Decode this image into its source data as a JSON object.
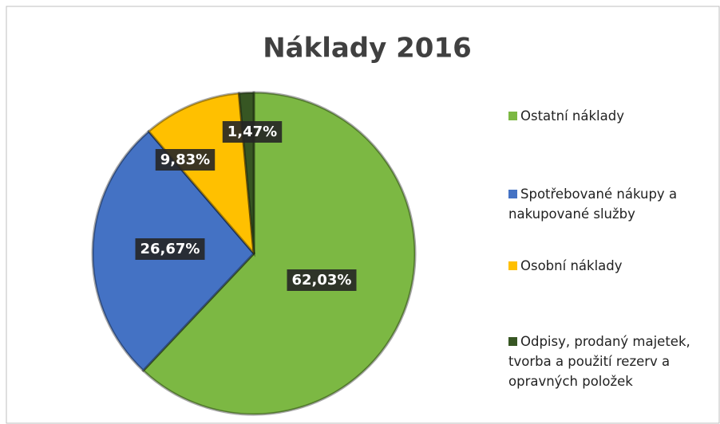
{
  "chart_data": {
    "type": "pie",
    "title": "Náklady 2016",
    "categories": [
      "Ostatní náklady",
      "Spotřebované nákupy a nakupované služby",
      "Osobní náklady",
      "Odpisy, prodaný majetek, tvorba a použití rezerv a opravných položek"
    ],
    "values": [
      62.03,
      26.67,
      9.83,
      1.47
    ],
    "value_labels": [
      "62,03%",
      "26,67%",
      "9,83%",
      "1,47%"
    ],
    "colors": [
      "#7cb843",
      "#4472c4",
      "#ffc000",
      "#375623"
    ],
    "legend": "right"
  }
}
